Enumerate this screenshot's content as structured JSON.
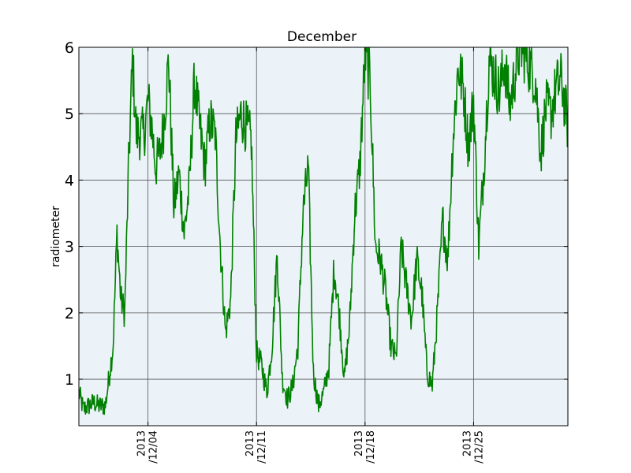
{
  "chart_data": {
    "type": "line",
    "title": "December",
    "xlabel": "",
    "ylabel": "radiometer",
    "x_axis": "date",
    "xlim": [
      "2013-11-29 13:00",
      "2013-12-31 02:00"
    ],
    "ylim": [
      0.3,
      6
    ],
    "yticks": [
      1,
      2,
      3,
      4,
      5,
      6
    ],
    "ytick_labels": [
      "1",
      "2",
      "3",
      "4",
      "5",
      "6"
    ],
    "xticks": [
      "2013-12-04",
      "2013-12-11",
      "2013-12-18",
      "2013-12-25"
    ],
    "xtick_labels": [
      {
        "line1": "2013",
        "line2": "/12/04"
      },
      {
        "line1": "2013",
        "line2": "/12/11"
      },
      {
        "line1": "2013",
        "line2": "/12/18"
      },
      {
        "line1": "2013",
        "line2": "/12/25"
      }
    ],
    "grid": true,
    "background_color": "#ebf2f8",
    "line_color": "#008000",
    "series": [
      {
        "x": [
          "2013-11-29 13:00",
          "2013-11-29 20:00",
          "2013-11-30 04:00",
          "2013-11-30 12:00",
          "2013-11-30 20:00",
          "2013-12-01 06:00",
          "2013-12-01 18:00",
          "2013-12-02 00:00",
          "2013-12-02 06:00",
          "2013-12-02 12:00",
          "2013-12-02 18:00",
          "2013-12-03 00:00",
          "2013-12-03 06:00",
          "2013-12-03 12:00",
          "2013-12-03 18:00",
          "2013-12-04 00:00",
          "2013-12-04 06:00",
          "2013-12-04 12:00",
          "2013-12-04 18:00",
          "2013-12-05 00:00",
          "2013-12-05 08:00",
          "2013-12-05 16:00",
          "2013-12-06 00:00",
          "2013-12-06 08:00",
          "2013-12-06 16:00",
          "2013-12-07 00:00",
          "2013-12-07 08:00",
          "2013-12-07 16:00",
          "2013-12-08 00:00",
          "2013-12-08 08:00",
          "2013-12-08 16:00",
          "2013-12-09 00:00",
          "2013-12-09 08:00",
          "2013-12-09 16:00",
          "2013-12-10 00:00",
          "2013-12-10 08:00",
          "2013-12-10 16:00",
          "2013-12-11 00:00",
          "2013-12-11 08:00",
          "2013-12-11 16:00",
          "2013-12-12 00:00",
          "2013-12-12 08:00",
          "2013-12-12 16:00",
          "2013-12-13 00:00",
          "2013-12-13 08:00",
          "2013-12-13 16:00",
          "2013-12-14 00:00",
          "2013-12-14 08:00",
          "2013-12-14 16:00",
          "2013-12-15 00:00",
          "2013-12-15 08:00",
          "2013-12-15 16:00",
          "2013-12-16 00:00",
          "2013-12-16 08:00",
          "2013-12-16 16:00",
          "2013-12-17 00:00",
          "2013-12-17 08:00",
          "2013-12-17 16:00",
          "2013-12-18 00:00",
          "2013-12-18 08:00",
          "2013-12-18 16:00",
          "2013-12-19 00:00",
          "2013-12-19 08:00",
          "2013-12-19 16:00",
          "2013-12-20 00:00",
          "2013-12-20 08:00",
          "2013-12-20 16:00",
          "2013-12-21 00:00",
          "2013-12-21 08:00",
          "2013-12-21 16:00",
          "2013-12-22 00:00",
          "2013-12-22 08:00",
          "2013-12-22 16:00",
          "2013-12-23 00:00",
          "2013-12-23 08:00",
          "2013-12-23 16:00",
          "2013-12-24 00:00",
          "2013-12-24 08:00",
          "2013-12-24 16:00",
          "2013-12-25 00:00",
          "2013-12-25 08:00",
          "2013-12-25 16:00",
          "2013-12-26 00:00",
          "2013-12-26 08:00",
          "2013-12-26 16:00",
          "2013-12-27 00:00",
          "2013-12-27 08:00",
          "2013-12-27 16:00",
          "2013-12-28 00:00",
          "2013-12-28 08:00",
          "2013-12-28 16:00",
          "2013-12-29 00:00",
          "2013-12-29 08:00",
          "2013-12-29 16:00",
          "2013-12-30 00:00",
          "2013-12-30 08:00",
          "2013-12-30 16:00",
          "2013-12-31 02:00"
        ],
        "y": [
          0.8,
          0.55,
          0.6,
          0.65,
          0.6,
          0.6,
          1.5,
          3.2,
          2.2,
          2.0,
          4.2,
          5.8,
          4.7,
          4.7,
          4.7,
          5.2,
          4.8,
          4.2,
          4.4,
          4.8,
          5.8,
          3.6,
          4.1,
          3.2,
          3.9,
          5.5,
          4.8,
          4.2,
          4.9,
          4.7,
          3.0,
          1.7,
          2.2,
          4.6,
          5.0,
          4.8,
          4.6,
          1.4,
          1.2,
          0.8,
          1.5,
          2.9,
          1.0,
          0.7,
          0.9,
          1.5,
          3.5,
          4.2,
          1.1,
          0.6,
          0.8,
          1.2,
          2.7,
          2.0,
          1.0,
          1.8,
          3.5,
          4.2,
          5.9,
          5.5,
          3.0,
          2.8,
          2.3,
          1.5,
          1.3,
          3.0,
          2.4,
          1.9,
          2.8,
          2.3,
          1.1,
          0.9,
          2.0,
          3.4,
          2.8,
          4.6,
          5.7,
          5.4,
          4.5,
          5.2,
          3.0,
          4.2,
          5.8,
          5.6,
          5.3,
          5.8,
          5.1,
          5.6,
          6.0,
          5.9,
          5.7,
          5.5,
          4.4,
          5.1,
          5.0,
          5.4,
          5.5,
          4.8
        ]
      }
    ]
  }
}
